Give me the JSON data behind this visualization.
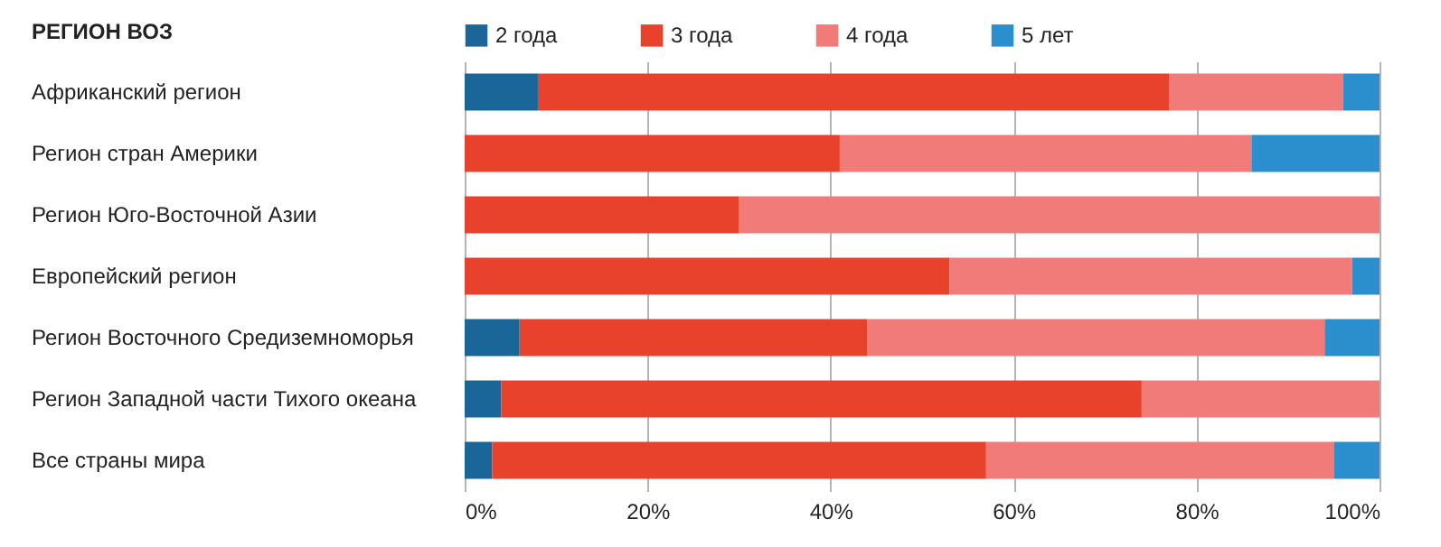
{
  "chart_data": {
    "type": "bar",
    "orientation": "horizontal",
    "stacked": true,
    "ylabel": "РЕГИОН ВОЗ",
    "categories": [
      "Африканский регион",
      "Регион стран Америки",
      "Регион Юго-Восточной Азии",
      "Европейский регион",
      "Регион Восточного Средиземноморья",
      "Регион Западной части Тихого океана",
      "Все страны мира"
    ],
    "series": [
      {
        "name": "2 года",
        "color": "#1b6699",
        "values": [
          8,
          0,
          0,
          0,
          6,
          4,
          3
        ]
      },
      {
        "name": "3 года",
        "color": "#e8412c",
        "values": [
          69,
          41,
          30,
          53,
          38,
          70,
          54
        ]
      },
      {
        "name": "4 года",
        "color": "#f07b78",
        "values": [
          19,
          45,
          70,
          44,
          50,
          26,
          38
        ]
      },
      {
        "name": "5 лет",
        "color": "#2a8fcc",
        "values": [
          4,
          14,
          0,
          3,
          6,
          0,
          5
        ]
      }
    ],
    "xlim": [
      0,
      100
    ],
    "xticks": [
      {
        "value": 0,
        "label": "0%"
      },
      {
        "value": 20,
        "label": "20%"
      },
      {
        "value": 40,
        "label": "40%"
      },
      {
        "value": 60,
        "label": "60%"
      },
      {
        "value": 80,
        "label": "80%"
      },
      {
        "value": 100,
        "label": "100%"
      }
    ],
    "grid": "x",
    "legend": "top"
  }
}
